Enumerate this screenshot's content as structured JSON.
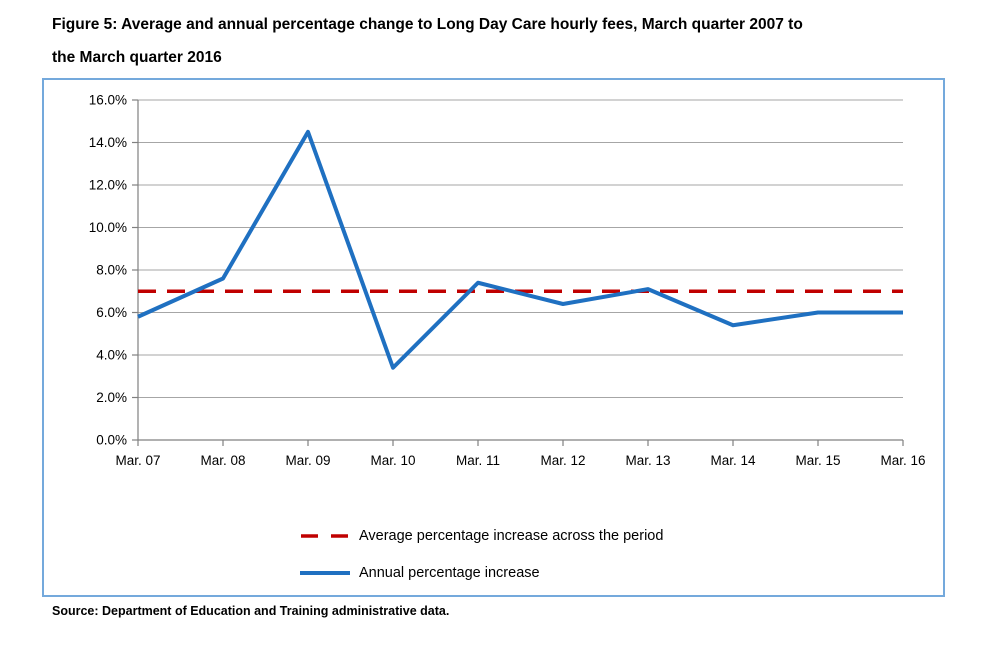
{
  "title_lines": [
    "Figure 5:  Average and annual percentage change to Long Day Care hourly fees, March quarter 2007 to",
    "the March quarter 2016"
  ],
  "source": "Source: Department of Education and Training administrative data.",
  "colors": {
    "annual_line": "#1f70c1",
    "average_line": "#c00000",
    "chart_border": "#74a9dc",
    "gridline": "#a6a6a6",
    "axis": "#808080"
  },
  "legend": [
    {
      "label": "Average percentage increase across the period",
      "series_index": 1
    },
    {
      "label": "Annual percentage increase",
      "series_index": 0
    }
  ],
  "chart_data": {
    "type": "line",
    "title": "Average and annual percentage change to Long Day Care hourly fees, March quarter 2007 to the March quarter 2016",
    "categories": [
      "Mar. 07",
      "Mar. 08",
      "Mar. 09",
      "Mar. 10",
      "Mar. 11",
      "Mar. 12",
      "Mar. 13",
      "Mar. 14",
      "Mar. 15",
      "Mar. 16"
    ],
    "series": [
      {
        "name": "Annual percentage increase",
        "values": [
          5.8,
          7.6,
          14.5,
          3.4,
          7.4,
          6.4,
          7.1,
          5.4,
          6.0,
          6.0
        ],
        "color": "#1f70c1",
        "style": "solid"
      },
      {
        "name": "Average percentage increase across the period",
        "values": [
          7.0,
          7.0,
          7.0,
          7.0,
          7.0,
          7.0,
          7.0,
          7.0,
          7.0,
          7.0
        ],
        "color": "#c00000",
        "style": "dashed"
      }
    ],
    "xlabel": "",
    "ylabel": "",
    "ylim": [
      0,
      16
    ],
    "ytick_step": 2,
    "ytick_labels": [
      "0.0%",
      "2.0%",
      "4.0%",
      "6.0%",
      "8.0%",
      "10.0%",
      "12.0%",
      "14.0%",
      "16.0%"
    ],
    "grid": "horizontal",
    "legend_position": "bottom"
  }
}
